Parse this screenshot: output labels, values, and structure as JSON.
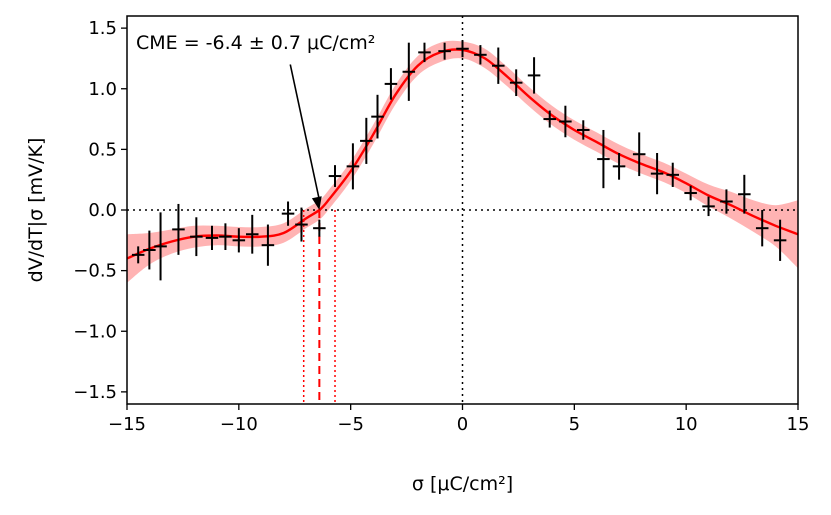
{
  "chart_data": {
    "type": "line",
    "title": "",
    "xlabel": "σ [μC/cm²]",
    "ylabel": "dV/dT|σ [mV/K]",
    "xlim": [
      -15,
      15
    ],
    "ylim": [
      -1.6,
      1.6
    ],
    "x_ticks": [
      -15,
      -10,
      -5,
      0,
      5,
      10,
      15
    ],
    "x_tick_labels": [
      "−15",
      "−10",
      "−5",
      "0",
      "5",
      "10",
      "15"
    ],
    "y_ticks": [
      -1.5,
      -1.0,
      -0.5,
      0.0,
      0.5,
      1.0,
      1.5
    ],
    "y_tick_labels": [
      "−1.5",
      "−1.0",
      "−0.5",
      "0.0",
      "0.5",
      "1.0",
      "1.5"
    ],
    "annotation": {
      "text": "CME = -6.4 ± 0.7 μC/cm²",
      "target": [
        -6.4,
        0.0
      ],
      "text_anchor": [
        -7.7,
        1.2
      ]
    },
    "cme": {
      "value": -6.4,
      "lower": -7.1,
      "upper": -5.7
    },
    "reference_lines": {
      "x": 0,
      "y": 0
    },
    "fit": {
      "color": "#ff0000",
      "band_color": "#ff9a9a",
      "x": [
        -15,
        -14,
        -13,
        -12,
        -11,
        -10,
        -9,
        -8,
        -7,
        -6.4,
        -6,
        -5,
        -4,
        -3,
        -2,
        -1,
        0,
        1,
        2,
        3,
        4,
        5,
        6,
        7,
        8,
        9,
        10,
        11,
        12,
        13,
        14,
        15
      ],
      "y": [
        -0.4,
        -0.32,
        -0.26,
        -0.22,
        -0.21,
        -0.22,
        -0.22,
        -0.19,
        -0.07,
        0.0,
        0.08,
        0.32,
        0.62,
        0.95,
        1.19,
        1.3,
        1.32,
        1.25,
        1.1,
        0.93,
        0.78,
        0.66,
        0.56,
        0.46,
        0.38,
        0.31,
        0.22,
        0.12,
        0.04,
        -0.05,
        -0.13,
        -0.2
      ],
      "band_lower": [
        -0.6,
        -0.45,
        -0.36,
        -0.31,
        -0.29,
        -0.3,
        -0.3,
        -0.27,
        -0.15,
        -0.08,
        0.0,
        0.24,
        0.54,
        0.87,
        1.11,
        1.22,
        1.25,
        1.17,
        1.02,
        0.85,
        0.7,
        0.58,
        0.48,
        0.38,
        0.3,
        0.23,
        0.14,
        0.03,
        -0.07,
        -0.18,
        -0.3,
        -0.48
      ],
      "band_upper": [
        -0.2,
        -0.19,
        -0.16,
        -0.13,
        -0.13,
        -0.14,
        -0.14,
        -0.11,
        0.01,
        0.08,
        0.16,
        0.4,
        0.7,
        1.03,
        1.27,
        1.38,
        1.39,
        1.33,
        1.18,
        1.01,
        0.86,
        0.74,
        0.64,
        0.54,
        0.46,
        0.39,
        0.3,
        0.21,
        0.15,
        0.08,
        0.04,
        0.08
      ]
    },
    "series": [
      {
        "name": "measurements",
        "color": "#000000",
        "x": [
          -14.5,
          -14.0,
          -13.5,
          -12.7,
          -11.9,
          -11.2,
          -10.6,
          -10.0,
          -9.4,
          -8.7,
          -7.8,
          -7.2,
          -6.4,
          -5.7,
          -4.9,
          -4.3,
          -3.8,
          -3.2,
          -2.4,
          -1.7,
          -0.8,
          0,
          0.8,
          1.6,
          2.4,
          3.2,
          3.9,
          4.6,
          5.4,
          6.3,
          7.0,
          7.9,
          8.7,
          9.4,
          10.2,
          11.0,
          11.8,
          12.6,
          13.4,
          14.2
        ],
        "y": [
          -0.37,
          -0.33,
          -0.3,
          -0.16,
          -0.22,
          -0.23,
          -0.22,
          -0.25,
          -0.2,
          -0.29,
          -0.03,
          -0.12,
          -0.15,
          0.28,
          0.36,
          0.57,
          0.77,
          1.04,
          1.14,
          1.3,
          1.31,
          1.33,
          1.28,
          1.19,
          1.05,
          1.11,
          0.75,
          0.73,
          0.66,
          0.42,
          0.36,
          0.46,
          0.3,
          0.29,
          0.14,
          0.03,
          0.07,
          0.13,
          -0.15,
          -0.25
        ],
        "yerr": [
          0.07,
          0.16,
          0.28,
          0.21,
          0.16,
          0.1,
          0.11,
          0.1,
          0.16,
          0.17,
          0.1,
          0.14,
          0.07,
          0.09,
          0.19,
          0.19,
          0.18,
          0.13,
          0.24,
          0.08,
          0.07,
          0.07,
          0.08,
          0.15,
          0.11,
          0.15,
          0.07,
          0.13,
          0.08,
          0.24,
          0.11,
          0.18,
          0.17,
          0.1,
          0.06,
          0.08,
          0.1,
          0.16,
          0.15,
          0.17
        ],
        "xerr": [
          0.28,
          0.28,
          0.28,
          0.28,
          0.28,
          0.28,
          0.28,
          0.28,
          0.28,
          0.28,
          0.28,
          0.28,
          0.28,
          0.28,
          0.28,
          0.28,
          0.28,
          0.28,
          0.28,
          0.28,
          0.28,
          0.28,
          0.28,
          0.28,
          0.28,
          0.28,
          0.28,
          0.28,
          0.28,
          0.28,
          0.28,
          0.28,
          0.28,
          0.28,
          0.28,
          0.28,
          0.28,
          0.28,
          0.28,
          0.28
        ]
      }
    ]
  }
}
